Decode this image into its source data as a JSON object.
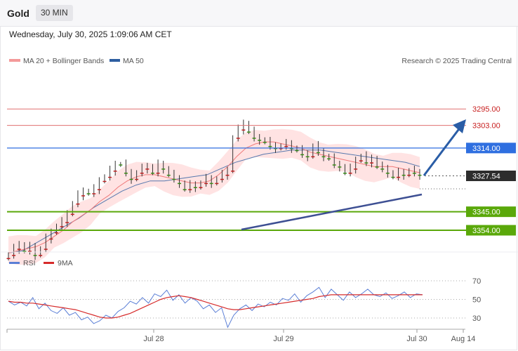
{
  "header": {
    "instrument": "Gold",
    "timeframe": "30 MIN",
    "datetime": "Wednesday, July 30, 2025 1:09:06 AM CET"
  },
  "legend": {
    "ma20": "MA 20 + Bollinger Bands",
    "ma50": "MA 50",
    "credit": "Research © 2025 Trading Central",
    "rsi": "RSI",
    "rsi_ma": "9MA"
  },
  "colors": {
    "resistance": "#5aa80a",
    "support": "#2f6fe0",
    "target_red": "#e07070",
    "ma50": "#2d5ea0",
    "ma20": "#ef7a7a",
    "bollinger": "#ffe0e0",
    "arrow": "#2a5da6",
    "price": "#2d2d2d",
    "candle_up": "#3a8c18",
    "candle_down": "#c02020"
  },
  "chart_data": [
    {
      "type": "line",
      "title": "Gold 30 MIN",
      "x_ticks": [
        "Jul 28",
        "Jul 29",
        "Jul 30",
        "Aug 14"
      ],
      "levels": [
        {
          "name": "resistance",
          "value": 3354.0,
          "label": "3354.00"
        },
        {
          "name": "resistance",
          "value": 3345.0,
          "label": "3345.00"
        },
        {
          "name": "last",
          "value": 3327.54,
          "label": "3327.54"
        },
        {
          "name": "support",
          "value": 3314.0,
          "label": "3314.00"
        },
        {
          "name": "support",
          "value": 3303.0,
          "label": "3303.00"
        },
        {
          "name": "support",
          "value": 3295.0,
          "label": "3295.00"
        }
      ],
      "ylim": [
        3290,
        3370
      ],
      "series": [
        {
          "name": "Gold",
          "values": [
            3366,
            3363,
            3361,
            3364,
            3362,
            3366,
            3363,
            3358,
            3355,
            3352,
            3350,
            3346,
            3341,
            3337,
            3335,
            3336,
            3334,
            3330,
            3328,
            3325,
            3322,
            3322,
            3326,
            3329,
            3326,
            3324,
            3323,
            3326,
            3322,
            3324,
            3327,
            3329,
            3331,
            3334,
            3332,
            3333,
            3331,
            3329,
            3331,
            3329,
            3327,
            3325,
            3309,
            3305,
            3302,
            3306,
            3309,
            3310,
            3311,
            3313,
            3314,
            3313,
            3312,
            3314,
            3315,
            3317,
            3318,
            3313,
            3316,
            3318,
            3319,
            3322,
            3323,
            3326,
            3324,
            3320,
            3318,
            3321,
            3319,
            3323,
            3324,
            3326,
            3328,
            3326,
            3327,
            3325,
            3326,
            3327
          ]
        },
        {
          "name": "MA 20",
          "values": [
            3365,
            3364,
            3363,
            3362,
            3360,
            3357,
            3354,
            3350,
            3347,
            3344,
            3340,
            3337,
            3333,
            3330,
            3328,
            3327,
            3327,
            3328,
            3329,
            3330,
            3331,
            3331,
            3330,
            3327,
            3323,
            3318,
            3314,
            3312,
            3311,
            3311,
            3312,
            3313,
            3314,
            3316,
            3317,
            3318,
            3319,
            3320,
            3321,
            3322,
            3323,
            3323,
            3323,
            3324,
            3325,
            3326
          ]
        },
        {
          "name": "MA 50",
          "values": [
            3365,
            3364,
            3360,
            3356,
            3352,
            3348,
            3343,
            3339,
            3335,
            3332,
            3330,
            3330,
            3329,
            3328,
            3327,
            3324,
            3321,
            3319,
            3317,
            3316,
            3315,
            3315,
            3315,
            3316,
            3317,
            3318,
            3319,
            3320,
            3321,
            3323
          ]
        }
      ]
    },
    {
      "type": "line",
      "title": "RSI",
      "yticks": [
        30,
        50,
        70
      ],
      "ylim": [
        20,
        80
      ],
      "series": [
        {
          "name": "RSI",
          "values": [
            48,
            44,
            47,
            43,
            52,
            40,
            46,
            38,
            35,
            41,
            33,
            36,
            28,
            31,
            24,
            27,
            33,
            30,
            37,
            41,
            48,
            45,
            52,
            46,
            56,
            53,
            60,
            49,
            55,
            46,
            52,
            48,
            40,
            44,
            36,
            41,
            20,
            33,
            40,
            44,
            38,
            45,
            42,
            47,
            44,
            51,
            49,
            56,
            47,
            54,
            58,
            63,
            52,
            61,
            55,
            49,
            58,
            52,
            56,
            61,
            55,
            53,
            57,
            51,
            54,
            58,
            52,
            56,
            55
          ]
        },
        {
          "name": "9MA",
          "values": [
            48,
            47,
            47,
            46,
            46,
            45,
            44,
            43,
            42,
            41,
            40,
            39,
            37,
            35,
            33,
            31,
            30,
            30,
            31,
            33,
            35,
            38,
            41,
            44,
            47,
            50,
            52,
            53,
            54,
            53,
            52,
            50,
            48,
            46,
            44,
            42,
            40,
            39,
            39,
            40,
            41,
            42,
            43,
            44,
            45,
            46,
            47,
            48,
            49,
            50,
            51,
            53,
            54,
            55,
            55,
            55,
            55,
            55,
            55,
            55,
            55,
            55,
            55,
            55,
            55,
            55,
            55,
            55,
            55
          ]
        }
      ]
    }
  ]
}
